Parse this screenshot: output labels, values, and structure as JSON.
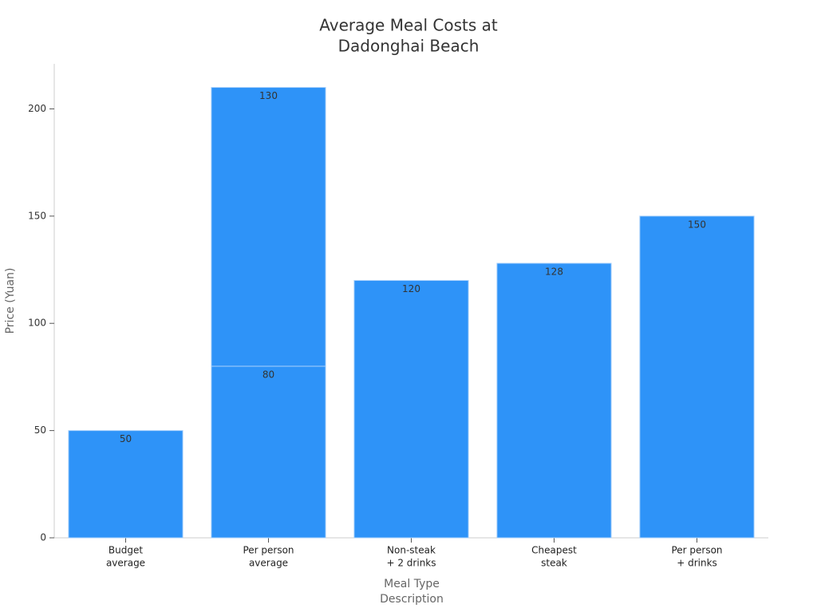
{
  "chart_data": {
    "type": "bar",
    "stacked": true,
    "title": [
      "Average Meal Costs at",
      "Dadonghai Beach"
    ],
    "x_label": [
      "Meal Type",
      "Description"
    ],
    "y_label": "Price (Yuan)",
    "categories": [
      [
        "Budget",
        "average"
      ],
      [
        "Per person",
        "average"
      ],
      [
        "Non-steak",
        "+ 2 drinks"
      ],
      [
        "Cheapest",
        "steak"
      ],
      [
        "Per person",
        "+ drinks"
      ]
    ],
    "series": [
      {
        "color": "#2e93f8",
        "values": [
          50,
          80,
          120,
          128,
          150
        ]
      },
      {
        "color": "#2e93f8",
        "values": [
          null,
          130,
          null,
          null,
          null
        ]
      }
    ],
    "ylim": [
      0,
      221
    ],
    "yticks": [
      0,
      50,
      100,
      150,
      200
    ],
    "grid": false
  }
}
